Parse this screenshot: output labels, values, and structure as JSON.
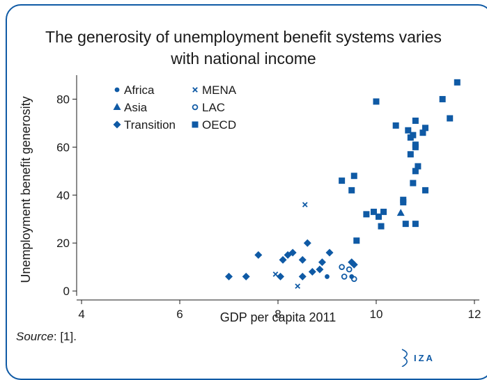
{
  "title_line1": "The generosity of unemployment benefit systems varies",
  "title_line2": "with national income",
  "source_label": "Source",
  "source_ref": ": [1].",
  "logo_text": "IZA",
  "colors": {
    "primary": "#0f5aa5",
    "text": "#1a1a1a",
    "frame": "#0f5aa5"
  },
  "chart_data": {
    "type": "scatter",
    "title": "",
    "xlabel": "GDP per capita 2011",
    "ylabel": "Unemployment benefit generosity",
    "xlim": [
      3.9,
      12.1
    ],
    "ylim": [
      -2,
      90
    ],
    "xticks": [
      4,
      6,
      8,
      10,
      12
    ],
    "yticks": [
      0,
      20,
      40,
      60,
      80
    ],
    "legend_position": "top-left",
    "grid": false,
    "series": [
      {
        "name": "Africa",
        "marker": "circle",
        "points": [
          [
            9.0,
            6
          ],
          [
            9.5,
            6
          ]
        ]
      },
      {
        "name": "Asia",
        "marker": "triangle",
        "points": [
          [
            10.5,
            32.5
          ]
        ]
      },
      {
        "name": "Transition",
        "marker": "diamond",
        "points": [
          [
            7.0,
            6
          ],
          [
            7.35,
            6
          ],
          [
            7.6,
            15
          ],
          [
            8.05,
            6
          ],
          [
            8.1,
            13
          ],
          [
            8.2,
            15
          ],
          [
            8.3,
            16
          ],
          [
            8.5,
            6
          ],
          [
            8.5,
            13
          ],
          [
            8.6,
            20
          ],
          [
            8.7,
            8
          ],
          [
            8.85,
            9
          ],
          [
            8.9,
            12
          ],
          [
            9.05,
            16
          ],
          [
            9.5,
            12
          ],
          [
            9.55,
            11
          ]
        ]
      },
      {
        "name": "MENA",
        "marker": "x",
        "points": [
          [
            7.95,
            7
          ],
          [
            8.4,
            2
          ],
          [
            8.55,
            36
          ]
        ]
      },
      {
        "name": "LAC",
        "marker": "ring",
        "points": [
          [
            9.3,
            10
          ],
          [
            9.45,
            9
          ],
          [
            9.35,
            6
          ],
          [
            9.55,
            5
          ]
        ]
      },
      {
        "name": "OECD",
        "marker": "square",
        "points": [
          [
            9.3,
            46
          ],
          [
            9.55,
            48
          ],
          [
            9.5,
            42
          ],
          [
            9.6,
            21
          ],
          [
            9.8,
            32
          ],
          [
            9.95,
            33
          ],
          [
            10.05,
            31
          ],
          [
            10.0,
            79
          ],
          [
            10.1,
            27
          ],
          [
            10.15,
            33
          ],
          [
            10.4,
            69
          ],
          [
            10.55,
            37
          ],
          [
            10.55,
            38
          ],
          [
            10.6,
            28
          ],
          [
            10.65,
            67
          ],
          [
            10.7,
            57
          ],
          [
            10.7,
            64
          ],
          [
            10.75,
            45
          ],
          [
            10.75,
            65
          ],
          [
            10.8,
            71
          ],
          [
            10.8,
            61
          ],
          [
            10.8,
            60
          ],
          [
            10.8,
            50
          ],
          [
            10.85,
            52
          ],
          [
            10.8,
            28
          ],
          [
            10.95,
            66
          ],
          [
            11.0,
            68
          ],
          [
            11.0,
            42
          ],
          [
            11.35,
            80
          ],
          [
            11.5,
            72
          ],
          [
            11.65,
            87
          ]
        ]
      }
    ]
  }
}
